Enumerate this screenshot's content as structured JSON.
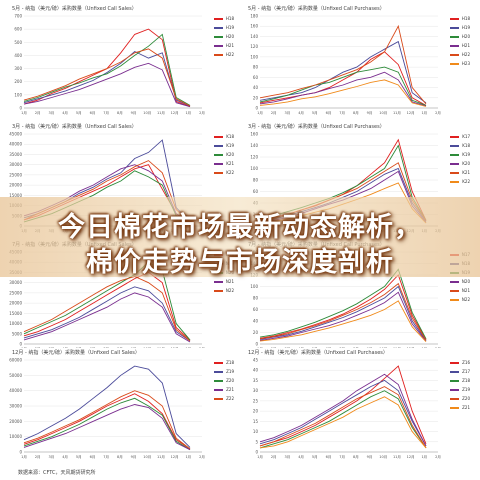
{
  "headline": {
    "line1": "今日棉花市场最新动态解析，",
    "line2": "棉价走势与市场深度剖析"
  },
  "source": "数据来源：CFTC，天风期货研究所",
  "panels": [
    {
      "title": "5月 - 纳指（美元/磅）采购数量（Unfixed Call Sales）",
      "yticks": [
        "0",
        "100",
        "200",
        "300",
        "400",
        "500",
        "600",
        "700"
      ],
      "xticks": [
        "1月",
        "2月",
        "3月",
        "4月",
        "5月",
        "6月",
        "7月",
        "8月",
        "9月",
        "10月",
        "11月",
        "12月",
        "1月",
        "2月"
      ],
      "legend": [
        "H18",
        "H19",
        "H20",
        "H21",
        "H22"
      ],
      "colors": [
        "#e02020",
        "#4b4b9a",
        "#2e8b3a",
        "#7a2e8f",
        "#d94a1a"
      ]
    },
    {
      "title": "5月 - 纳指（美元/磅）采购数量（Unfixed Call Purchases）",
      "yticks": [
        "0",
        "20",
        "40",
        "60",
        "80",
        "100",
        "120",
        "140",
        "160",
        "180"
      ],
      "xticks": [
        "1月",
        "2月",
        "3月",
        "4月",
        "5月",
        "6月",
        "7月",
        "8月",
        "9月",
        "10月",
        "11月",
        "12月",
        "1月",
        "2月"
      ],
      "legend": [
        "H18",
        "H19",
        "H20",
        "H21",
        "H22",
        "H23"
      ],
      "colors": [
        "#e02020",
        "#4b4b9a",
        "#2e8b3a",
        "#7a2e8f",
        "#d94a1a",
        "#f08a1a"
      ]
    },
    {
      "title": "3月 - 纳指（美元/磅）采购数量（Unfixed Call Sales）",
      "yticks": [
        "0",
        "5000",
        "10000",
        "15000",
        "20000",
        "25000",
        "30000",
        "35000",
        "40000",
        "45000"
      ],
      "xticks": [
        "1月",
        "2月",
        "3月",
        "4月",
        "5月",
        "6月",
        "7月",
        "8月",
        "9月",
        "10月",
        "11月",
        "12月",
        "1月",
        "2月"
      ],
      "legend": [
        "K18",
        "K19",
        "K20",
        "K21",
        "K22"
      ],
      "colors": [
        "#e02020",
        "#4b4b9a",
        "#2e8b3a",
        "#7a2e8f",
        "#d94a1a"
      ]
    },
    {
      "title": "3月 - 纳指（美元/磅）采购数量（Unfixed Call Purchases）",
      "yticks": [
        "0",
        "20",
        "40",
        "60",
        "80",
        "100",
        "120",
        "140",
        "160"
      ],
      "xticks": [
        "1月",
        "2月",
        "3月",
        "4月",
        "5月",
        "6月",
        "7月",
        "8月",
        "9月",
        "10月",
        "11月",
        "12月",
        "1月",
        "2月"
      ],
      "legend": [
        "K17",
        "K18",
        "K19",
        "K20",
        "K21",
        "K22"
      ],
      "colors": [
        "#e02020",
        "#4b4b9a",
        "#2e8b3a",
        "#7a2e8f",
        "#d94a1a",
        "#f08a1a"
      ]
    },
    {
      "title": "7月 - 纳指（美元/磅）采购数量（Unfixed Call Sales）",
      "yticks": [
        "0",
        "5000",
        "10000",
        "15000",
        "20000",
        "25000",
        "30000",
        "35000",
        "40000",
        "45000"
      ],
      "xticks": [
        "1月",
        "2月",
        "3月",
        "4月",
        "5月",
        "6月",
        "7月",
        "8月",
        "9月",
        "10月",
        "11月",
        "12月",
        "1月",
        "2月"
      ],
      "legend": [
        "N18",
        "N19",
        "N20",
        "N21",
        "N22"
      ],
      "colors": [
        "#e02020",
        "#4b4b9a",
        "#2e8b3a",
        "#7a2e8f",
        "#d94a1a"
      ]
    },
    {
      "title": "7月 - 纳指（美元/磅）采购数量（Unfixed Call Purchases）",
      "yticks": [
        "0",
        "20",
        "40",
        "60",
        "80",
        "100",
        "120",
        "140",
        "160"
      ],
      "xticks": [
        "1月",
        "2月",
        "3月",
        "4月",
        "5月",
        "6月",
        "7月",
        "8月",
        "9月",
        "10月",
        "11月",
        "12月",
        "1月",
        "2月"
      ],
      "legend": [
        "N17",
        "N18",
        "N19",
        "N20",
        "N21",
        "N22"
      ],
      "colors": [
        "#e02020",
        "#4b4b9a",
        "#2e8b3a",
        "#7a2e8f",
        "#d94a1a",
        "#f08a1a"
      ]
    },
    {
      "title": "12月 - 纳指（美元/磅）采购数量（Unfixed Call Sales）",
      "yticks": [
        "0",
        "10000",
        "20000",
        "30000",
        "40000",
        "50000",
        "60000"
      ],
      "xticks": [
        "1月",
        "2月",
        "3月",
        "4月",
        "5月",
        "6月",
        "7月",
        "8月",
        "9月",
        "10月",
        "11月",
        "12月",
        "1月",
        "2月"
      ],
      "legend": [
        "Z18",
        "Z19",
        "Z20",
        "Z21",
        "Z22"
      ],
      "colors": [
        "#e02020",
        "#4b4b9a",
        "#2e8b3a",
        "#7a2e8f",
        "#d94a1a"
      ]
    },
    {
      "title": "12月 - 纳指（美元/磅）采购数量（Unfixed Call Purchases）",
      "yticks": [
        "0",
        "5",
        "10",
        "15",
        "20",
        "25",
        "30",
        "35",
        "40",
        "45"
      ],
      "xticks": [
        "1月",
        "2月",
        "3月",
        "4月",
        "5月",
        "6月",
        "7月",
        "8月",
        "9月",
        "10月",
        "11月",
        "12月",
        "1月",
        "2月"
      ],
      "legend": [
        "Z16",
        "Z17",
        "Z18",
        "Z19",
        "Z20",
        "Z21"
      ],
      "colors": [
        "#e02020",
        "#4b4b9a",
        "#2e8b3a",
        "#7a2e8f",
        "#d94a1a",
        "#f08a1a"
      ]
    }
  ],
  "chart_data": [
    {
      "type": "line",
      "series": [
        {
          "name": "H18",
          "values": [
            30,
            60,
            110,
            150,
            200,
            250,
            300,
            420,
            560,
            600,
            520,
            50,
            10
          ]
        },
        {
          "name": "H19",
          "values": [
            40,
            70,
            100,
            130,
            170,
            210,
            270,
            340,
            430,
            380,
            420,
            60,
            15
          ]
        },
        {
          "name": "H20",
          "values": [
            50,
            80,
            120,
            160,
            190,
            230,
            260,
            320,
            400,
            470,
            560,
            80,
            20
          ]
        },
        {
          "name": "H21",
          "values": [
            30,
            50,
            80,
            110,
            140,
            180,
            220,
            260,
            310,
            340,
            290,
            40,
            10
          ]
        },
        {
          "name": "H22",
          "values": [
            60,
            90,
            130,
            170,
            220,
            260,
            300,
            350,
            420,
            450,
            380,
            70,
            15
          ]
        }
      ]
    },
    {
      "type": "line",
      "series": [
        {
          "name": "H18",
          "values": [
            10,
            15,
            20,
            25,
            30,
            40,
            55,
            70,
            95,
            110,
            85,
            20,
            5
          ]
        },
        {
          "name": "H19",
          "values": [
            15,
            20,
            25,
            30,
            40,
            55,
            70,
            80,
            100,
            115,
            130,
            30,
            10
          ]
        },
        {
          "name": "H20",
          "values": [
            12,
            18,
            25,
            35,
            45,
            50,
            60,
            70,
            75,
            80,
            70,
            15,
            5
          ]
        },
        {
          "name": "H21",
          "values": [
            8,
            12,
            18,
            25,
            30,
            38,
            45,
            55,
            60,
            70,
            55,
            12,
            4
          ]
        },
        {
          "name": "H22",
          "values": [
            20,
            25,
            30,
            38,
            45,
            55,
            65,
            75,
            90,
            110,
            160,
            40,
            8
          ]
        },
        {
          "name": "H23",
          "values": [
            5,
            8,
            12,
            18,
            22,
            28,
            35,
            42,
            50,
            55,
            45,
            10,
            3
          ]
        }
      ]
    },
    {
      "type": "line",
      "series": [
        {
          "name": "K18",
          "values": [
            3000,
            5000,
            8000,
            11000,
            14000,
            17000,
            20000,
            24000,
            28000,
            30000,
            18000,
            6000,
            1000
          ]
        },
        {
          "name": "K19",
          "values": [
            4000,
            6000,
            9000,
            12000,
            16000,
            19000,
            23000,
            26000,
            33000,
            36000,
            42000,
            9000,
            2000
          ]
        },
        {
          "name": "K20",
          "values": [
            2000,
            4000,
            6000,
            9000,
            12000,
            15000,
            19000,
            22000,
            27000,
            24000,
            20000,
            5000,
            1000
          ]
        },
        {
          "name": "K21",
          "values": [
            5000,
            7000,
            10000,
            13000,
            17000,
            20000,
            24000,
            28000,
            30000,
            27000,
            22000,
            6000,
            1500
          ]
        },
        {
          "name": "K22",
          "values": [
            3000,
            6000,
            9000,
            12000,
            15000,
            18000,
            22000,
            25000,
            29000,
            32000,
            26000,
            8000,
            2000
          ]
        }
      ]
    },
    {
      "type": "line",
      "series": [
        {
          "name": "K17",
          "values": [
            10,
            15,
            20,
            28,
            35,
            45,
            55,
            70,
            90,
            110,
            150,
            60,
            10
          ]
        },
        {
          "name": "K18",
          "values": [
            8,
            12,
            18,
            25,
            32,
            40,
            50,
            60,
            75,
            90,
            100,
            40,
            8
          ]
        },
        {
          "name": "K19",
          "values": [
            12,
            18,
            25,
            32,
            40,
            48,
            58,
            70,
            85,
            100,
            140,
            50,
            10
          ]
        },
        {
          "name": "K20",
          "values": [
            6,
            10,
            15,
            22,
            30,
            38,
            45,
            55,
            65,
            80,
            95,
            35,
            6
          ]
        },
        {
          "name": "K21",
          "values": [
            9,
            14,
            20,
            28,
            36,
            45,
            55,
            65,
            80,
            95,
            110,
            45,
            9
          ]
        },
        {
          "name": "K22",
          "values": [
            5,
            8,
            12,
            18,
            24,
            30,
            38,
            46,
            55,
            65,
            75,
            30,
            5
          ]
        }
      ]
    },
    {
      "type": "line",
      "series": [
        {
          "name": "N18",
          "values": [
            4000,
            6000,
            9000,
            12000,
            16000,
            20000,
            24000,
            28000,
            32000,
            35000,
            30000,
            8000,
            2000
          ]
        },
        {
          "name": "N19",
          "values": [
            3000,
            5000,
            7000,
            10000,
            13000,
            17000,
            21000,
            25000,
            28000,
            26000,
            20000,
            6000,
            1500
          ]
        },
        {
          "name": "N20",
          "values": [
            5000,
            8000,
            11000,
            14000,
            18000,
            22000,
            26000,
            30000,
            34000,
            40000,
            36000,
            10000,
            2000
          ]
        },
        {
          "name": "N21",
          "values": [
            2000,
            4000,
            6000,
            9000,
            12000,
            15000,
            18000,
            22000,
            25000,
            23000,
            18000,
            5000,
            1000
          ]
        },
        {
          "name": "N22",
          "values": [
            6000,
            9000,
            12000,
            16000,
            20000,
            24000,
            28000,
            31000,
            33000,
            30000,
            25000,
            7000,
            1500
          ]
        }
      ]
    },
    {
      "type": "line",
      "series": [
        {
          "name": "N17",
          "values": [
            10,
            14,
            20,
            26,
            34,
            42,
            52,
            64,
            78,
            95,
            120,
            50,
            8
          ]
        },
        {
          "name": "N18",
          "values": [
            8,
            12,
            16,
            22,
            30,
            38,
            46,
            56,
            68,
            80,
            100,
            40,
            6
          ]
        },
        {
          "name": "N19",
          "values": [
            12,
            16,
            22,
            30,
            38,
            48,
            58,
            70,
            85,
            100,
            130,
            55,
            9
          ]
        },
        {
          "name": "N20",
          "values": [
            6,
            10,
            14,
            20,
            26,
            32,
            40,
            50,
            60,
            72,
            90,
            35,
            5
          ]
        },
        {
          "name": "N21",
          "values": [
            9,
            13,
            18,
            25,
            32,
            40,
            50,
            60,
            72,
            86,
            105,
            45,
            7
          ]
        },
        {
          "name": "N22",
          "values": [
            5,
            8,
            12,
            16,
            22,
            28,
            35,
            42,
            50,
            60,
            75,
            30,
            4
          ]
        }
      ]
    },
    {
      "type": "line",
      "series": [
        {
          "name": "Z18",
          "values": [
            5000,
            8000,
            12000,
            16000,
            20000,
            25000,
            30000,
            34000,
            38000,
            33000,
            25000,
            8000,
            2000
          ]
        },
        {
          "name": "Z19",
          "values": [
            8000,
            12000,
            17000,
            22000,
            28000,
            35000,
            42000,
            50000,
            56000,
            54000,
            45000,
            12000,
            3000
          ]
        },
        {
          "name": "Z20",
          "values": [
            4000,
            7000,
            10000,
            14000,
            18000,
            23000,
            28000,
            32000,
            35000,
            30000,
            24000,
            7000,
            1500
          ]
        },
        {
          "name": "Z21",
          "values": [
            3000,
            6000,
            9000,
            12000,
            16000,
            20000,
            24000,
            28000,
            31000,
            29000,
            22000,
            6000,
            1500
          ]
        },
        {
          "name": "Z22",
          "values": [
            6000,
            9000,
            13000,
            17000,
            21000,
            26000,
            31000,
            36000,
            40000,
            37000,
            30000,
            9000,
            2000
          ]
        }
      ]
    },
    {
      "type": "line",
      "series": [
        {
          "name": "Z16",
          "values": [
            3,
            5,
            7,
            10,
            13,
            17,
            21,
            25,
            30,
            36,
            42,
            20,
            4
          ]
        },
        {
          "name": "Z17",
          "values": [
            4,
            6,
            9,
            12,
            16,
            20,
            24,
            28,
            32,
            35,
            30,
            15,
            3
          ]
        },
        {
          "name": "Z18",
          "values": [
            2,
            4,
            6,
            9,
            12,
            15,
            19,
            23,
            27,
            30,
            26,
            12,
            2
          ]
        },
        {
          "name": "Z19",
          "values": [
            5,
            7,
            10,
            13,
            17,
            21,
            25,
            30,
            34,
            38,
            33,
            16,
            3
          ]
        },
        {
          "name": "Z20",
          "values": [
            3,
            5,
            8,
            11,
            14,
            18,
            22,
            26,
            29,
            32,
            28,
            13,
            2
          ]
        },
        {
          "name": "Z21",
          "values": [
            2,
            3,
            5,
            8,
            11,
            14,
            17,
            21,
            24,
            27,
            23,
            10,
            2
          ]
        }
      ]
    }
  ]
}
